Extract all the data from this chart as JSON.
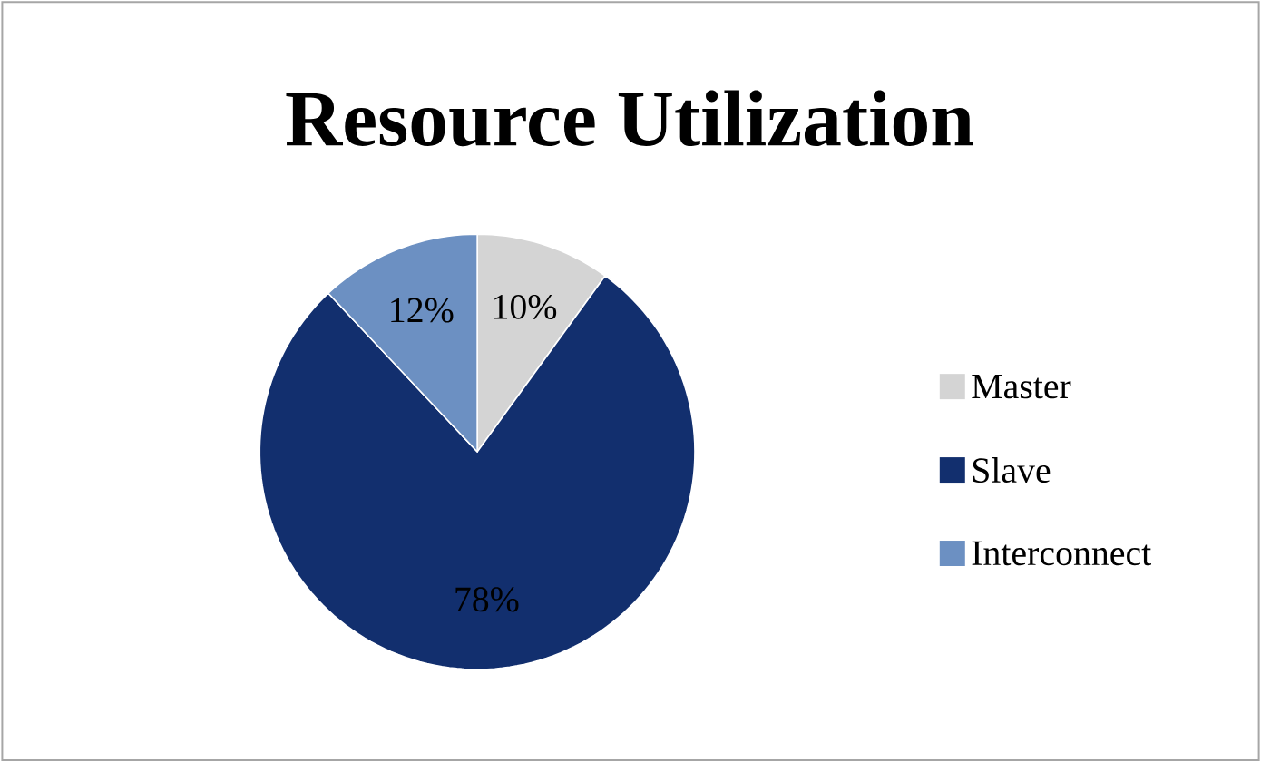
{
  "chart_data": {
    "type": "pie",
    "title": "Resource Utilization",
    "categories": [
      "Master",
      "Slave",
      "Interconnect"
    ],
    "values": [
      10,
      78,
      12
    ],
    "colors": [
      "#d4d4d4",
      "#122f6e",
      "#6c90c2"
    ],
    "value_labels": [
      "10%",
      "78%",
      "12%"
    ],
    "legend": "right"
  }
}
